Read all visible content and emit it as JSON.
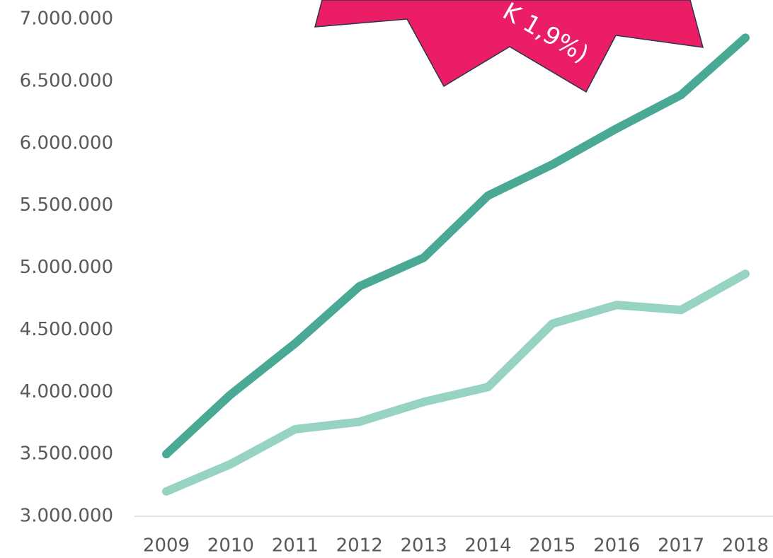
{
  "chart_data": {
    "type": "line",
    "annotation": "K 1,9%)",
    "categories": [
      "2009",
      "2010",
      "2011",
      "2012",
      "2013",
      "2014",
      "2015",
      "2016",
      "2017",
      "2018"
    ],
    "series": [
      {
        "color": "#4aa994",
        "values": [
          3500000,
          3980000,
          4390000,
          4850000,
          5080000,
          5580000,
          5830000,
          6120000,
          6390000,
          6850000
        ]
      },
      {
        "color": "#96d3c2",
        "values": [
          3200000,
          3420000,
          3700000,
          3760000,
          3920000,
          4040000,
          4550000,
          4700000,
          4660000,
          4950000
        ]
      }
    ],
    "ylim": [
      3000000,
      7000000
    ],
    "yticks": [
      {
        "value": 3000000,
        "label": "3.000.000"
      },
      {
        "value": 3500000,
        "label": "3.500.000"
      },
      {
        "value": 4000000,
        "label": "4.000.000"
      },
      {
        "value": 4500000,
        "label": "4.500.000"
      },
      {
        "value": 5000000,
        "label": "5.000.000"
      },
      {
        "value": 5500000,
        "label": "5.500.000"
      },
      {
        "value": 6000000,
        "label": "6.000.000"
      },
      {
        "value": 6500000,
        "label": "6.500.000"
      },
      {
        "value": 7000000,
        "label": "7.000.000"
      }
    ],
    "grid": false
  }
}
